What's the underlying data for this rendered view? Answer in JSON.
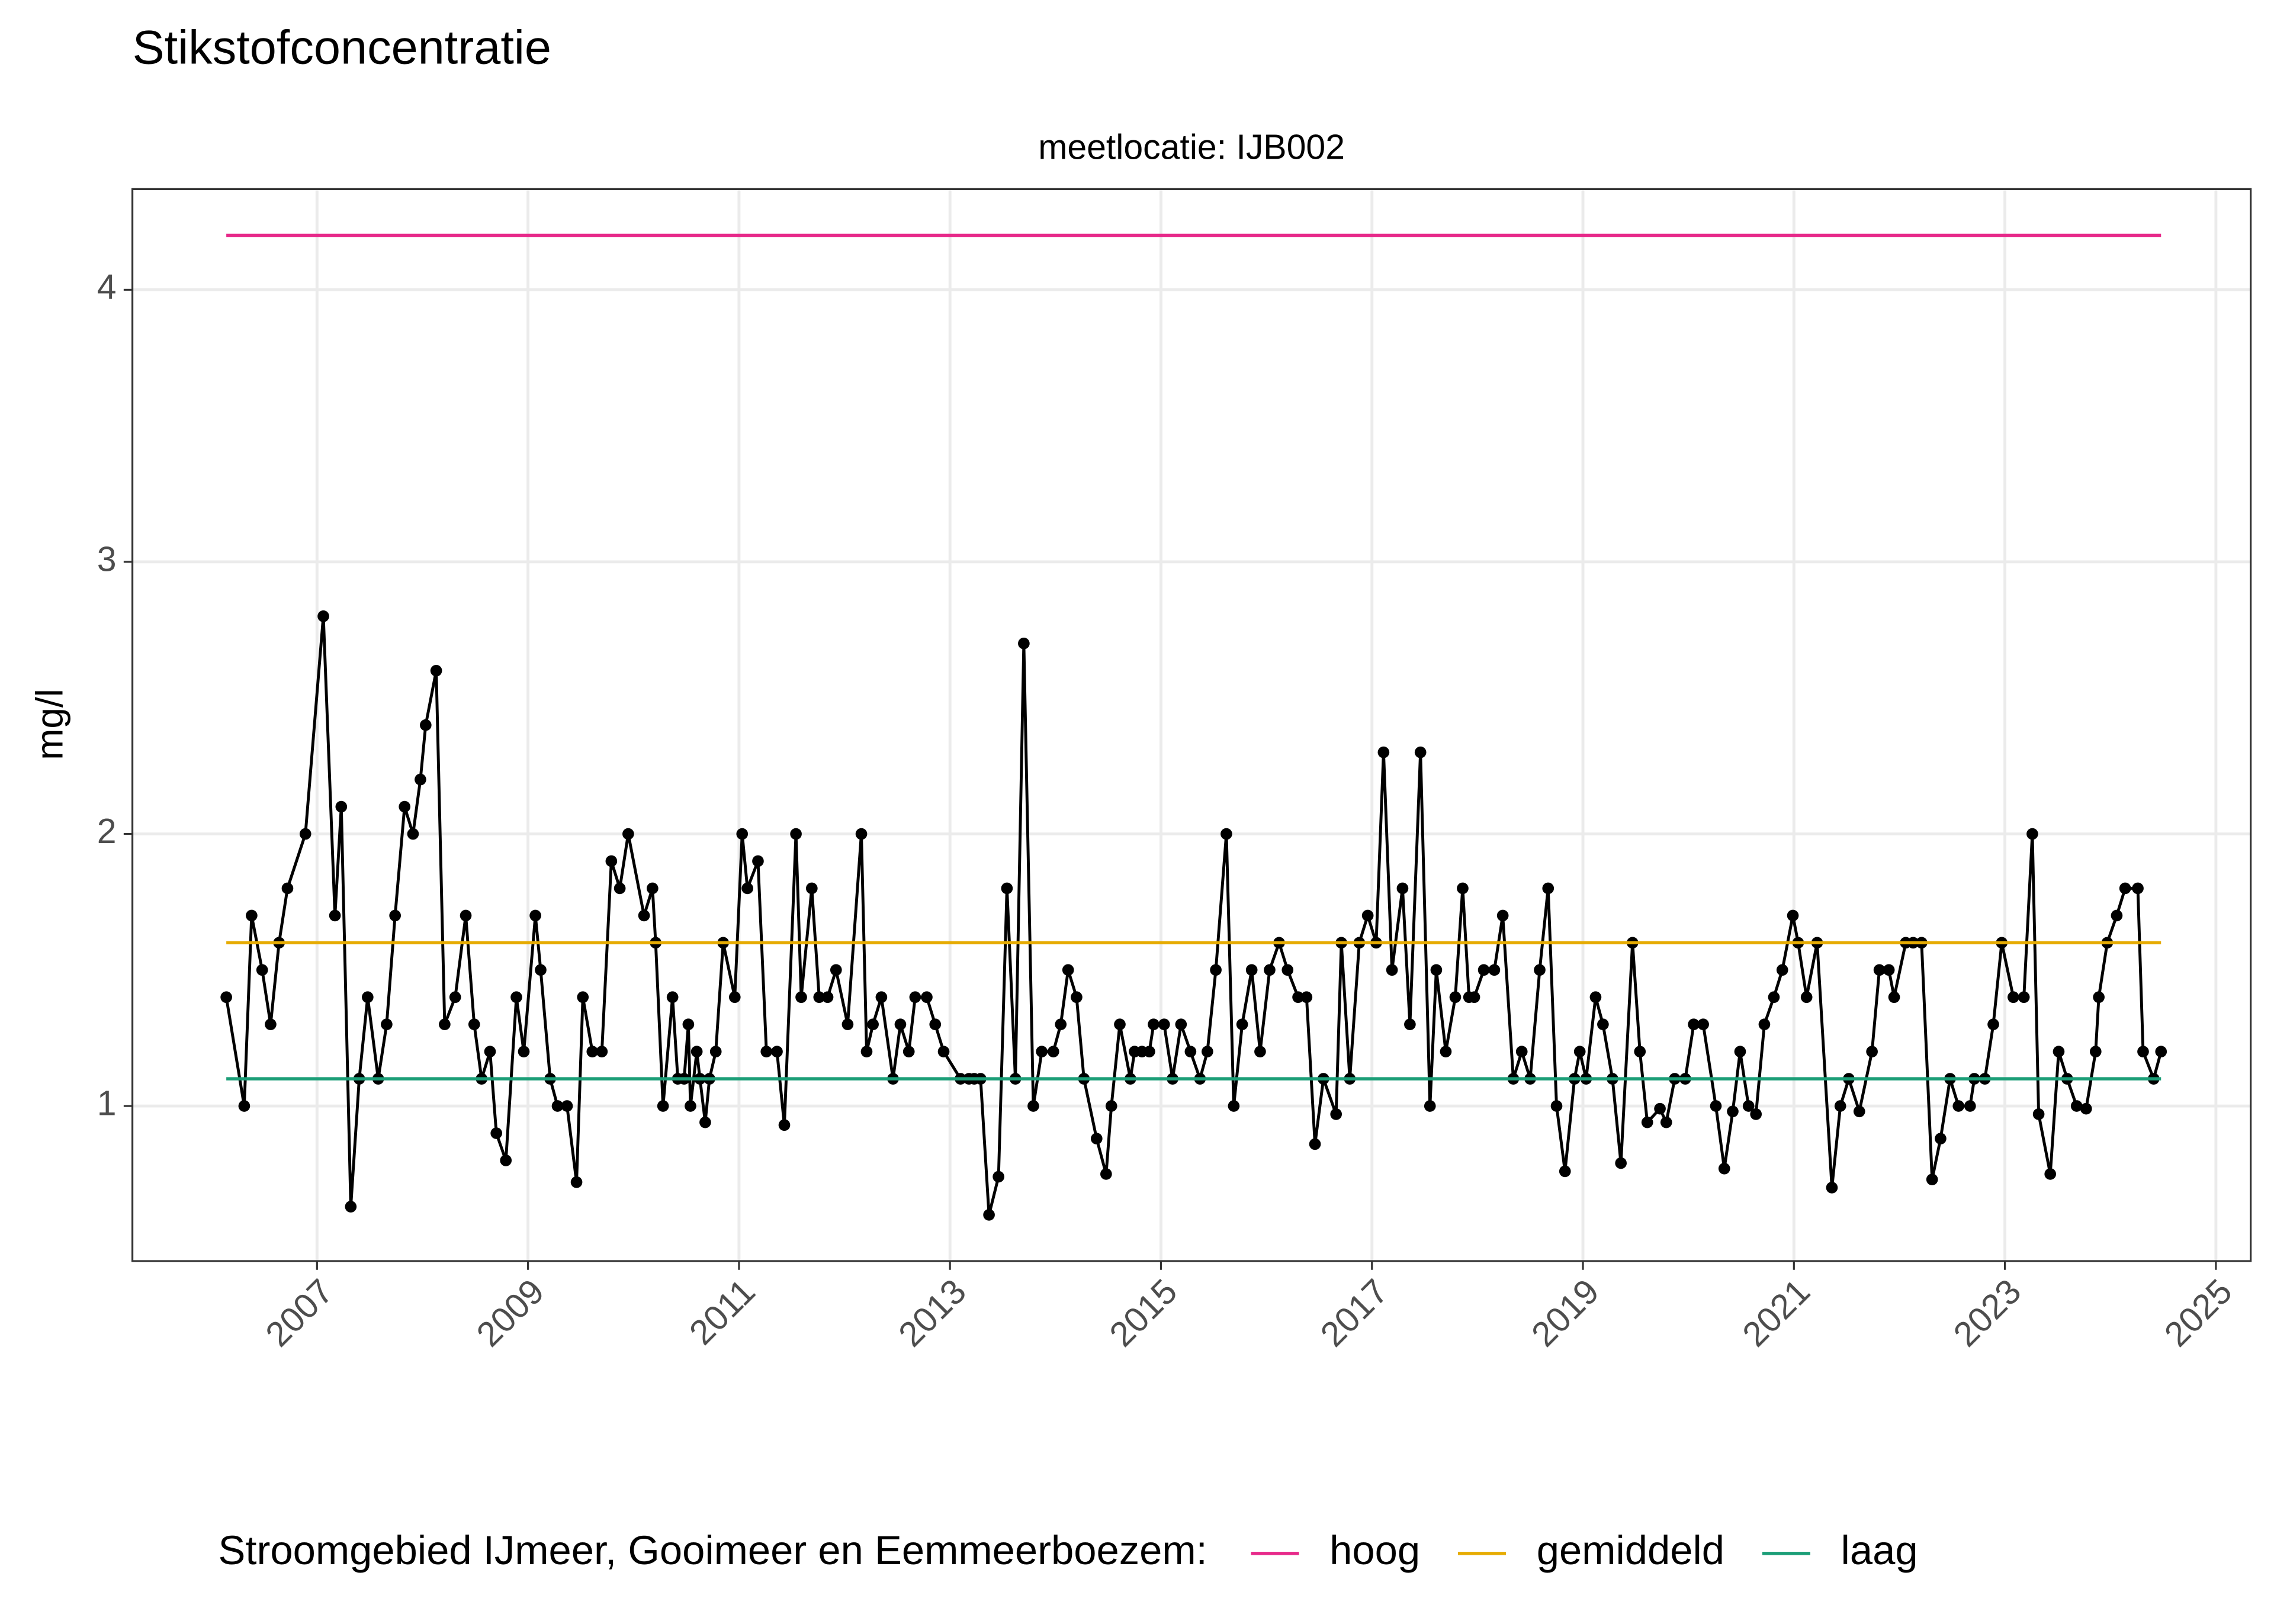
{
  "chart_data": {
    "type": "line",
    "title": "Stikstofconcentratie",
    "subtitle": "meetlocatie: IJB002",
    "y_label": "mg/l",
    "legend_title": "Stroomgebied IJmeer, Gooimeer en Eemmeerboezem:",
    "legend_position": "bottom",
    "grid": true,
    "xlim": [
      2005.25,
      2025.33
    ],
    "ylim": [
      0.43,
      4.37
    ],
    "xticks": [
      2007,
      2009,
      2011,
      2013,
      2015,
      2017,
      2019,
      2021,
      2023,
      2025
    ],
    "yticks": [
      1,
      2,
      3,
      4
    ],
    "series": [
      {
        "color": "#000000",
        "markers": true,
        "x": [
          2006.14,
          2006.31,
          2006.38,
          2006.48,
          2006.56,
          2006.64,
          2006.72,
          2006.89,
          2007.06,
          2007.17,
          2007.23,
          2007.32,
          2007.4,
          2007.48,
          2007.58,
          2007.66,
          2007.74,
          2007.83,
          2007.91,
          2007.98,
          2008.03,
          2008.13,
          2008.21,
          2008.31,
          2008.41,
          2008.49,
          2008.56,
          2008.64,
          2008.7,
          2008.79,
          2008.89,
          2008.96,
          2009.07,
          2009.12,
          2009.21,
          2009.28,
          2009.37,
          2009.46,
          2009.52,
          2009.61,
          2009.7,
          2009.79,
          2009.87,
          2009.95,
          2010.1,
          2010.18,
          2010.21,
          2010.28,
          2010.37,
          2010.42,
          2010.48,
          2010.52,
          2010.54,
          2010.6,
          2010.63,
          2010.68,
          2010.72,
          2010.78,
          2010.85,
          2010.96,
          2011.03,
          2011.08,
          2011.18,
          2011.26,
          2011.36,
          2011.43,
          2011.54,
          2011.59,
          2011.69,
          2011.76,
          2011.84,
          2011.92,
          2012.03,
          2012.16,
          2012.21,
          2012.27,
          2012.35,
          2012.46,
          2012.53,
          2012.61,
          2012.67,
          2012.78,
          2012.86,
          2012.94,
          2013.1,
          2013.18,
          2013.23,
          2013.29,
          2013.37,
          2013.46,
          2013.54,
          2013.62,
          2013.7,
          2013.79,
          2013.87,
          2013.98,
          2014.05,
          2014.12,
          2014.2,
          2014.27,
          2014.39,
          2014.48,
          2014.53,
          2014.61,
          2014.71,
          2014.75,
          2014.82,
          2014.89,
          2014.93,
          2015.03,
          2015.11,
          2015.19,
          2015.28,
          2015.37,
          2015.44,
          2015.52,
          2015.62,
          2015.69,
          2015.77,
          2015.86,
          2015.94,
          2016.03,
          2016.12,
          2016.2,
          2016.3,
          2016.38,
          2016.46,
          2016.54,
          2016.66,
          2016.71,
          2016.79,
          2016.88,
          2016.96,
          2017.04,
          2017.11,
          2017.19,
          2017.29,
          2017.36,
          2017.46,
          2017.55,
          2017.61,
          2017.7,
          2017.79,
          2017.86,
          2017.92,
          2017.97,
          2018.06,
          2018.16,
          2018.24,
          2018.34,
          2018.42,
          2018.5,
          2018.59,
          2018.67,
          2018.75,
          2018.83,
          2018.92,
          2018.97,
          2019.03,
          2019.12,
          2019.19,
          2019.28,
          2019.36,
          2019.47,
          2019.54,
          2019.61,
          2019.73,
          2019.79,
          2019.87,
          2019.97,
          2020.05,
          2020.14,
          2020.26,
          2020.34,
          2020.42,
          2020.49,
          2020.57,
          2020.64,
          2020.72,
          2020.81,
          2020.89,
          2020.99,
          2021.04,
          2021.12,
          2021.22,
          2021.36,
          2021.44,
          2021.52,
          2021.62,
          2021.74,
          2021.81,
          2021.9,
          2021.95,
          2022.06,
          2022.13,
          2022.21,
          2022.31,
          2022.39,
          2022.48,
          2022.56,
          2022.67,
          2022.71,
          2022.81,
          2022.89,
          2022.97,
          2023.08,
          2023.18,
          2023.26,
          2023.32,
          2023.43,
          2023.51,
          2023.59,
          2023.68,
          2023.77,
          2023.86,
          2023.89,
          2023.97,
          2024.06,
          2024.14,
          2024.26,
          2024.31,
          2024.41,
          2024.48
        ],
        "values": [
          1.4,
          1.0,
          1.7,
          1.5,
          1.3,
          1.6,
          1.8,
          2.0,
          2.8,
          1.7,
          2.1,
          0.63,
          1.1,
          1.4,
          1.1,
          1.3,
          1.7,
          2.1,
          2.0,
          2.2,
          2.4,
          2.6,
          1.3,
          1.4,
          1.7,
          1.3,
          1.1,
          1.2,
          0.9,
          0.8,
          1.4,
          1.2,
          1.7,
          1.5,
          1.1,
          1.0,
          1.0,
          0.72,
          1.4,
          1.2,
          1.2,
          1.9,
          1.8,
          2.0,
          1.7,
          1.8,
          1.6,
          1.0,
          1.4,
          1.1,
          1.1,
          1.3,
          1.0,
          1.2,
          1.1,
          0.94,
          1.1,
          1.2,
          1.6,
          1.4,
          2.0,
          1.8,
          1.9,
          1.2,
          1.2,
          0.93,
          2.0,
          1.4,
          1.8,
          1.4,
          1.4,
          1.5,
          1.3,
          2.0,
          1.2,
          1.3,
          1.4,
          1.1,
          1.3,
          1.2,
          1.4,
          1.4,
          1.3,
          1.2,
          1.1,
          1.1,
          1.1,
          1.1,
          0.6,
          0.74,
          1.8,
          1.1,
          2.7,
          1.0,
          1.2,
          1.2,
          1.3,
          1.5,
          1.4,
          1.1,
          0.88,
          0.75,
          1.0,
          1.3,
          1.1,
          1.2,
          1.2,
          1.2,
          1.3,
          1.3,
          1.1,
          1.3,
          1.2,
          1.1,
          1.2,
          1.5,
          2.0,
          1.0,
          1.3,
          1.5,
          1.2,
          1.5,
          1.6,
          1.5,
          1.4,
          1.4,
          0.86,
          1.1,
          0.97,
          1.6,
          1.1,
          1.6,
          1.7,
          1.6,
          2.3,
          1.5,
          1.8,
          1.3,
          2.3,
          1.0,
          1.5,
          1.2,
          1.4,
          1.8,
          1.4,
          1.4,
          1.5,
          1.5,
          1.7,
          1.1,
          1.2,
          1.1,
          1.5,
          1.8,
          1.0,
          0.76,
          1.1,
          1.2,
          1.1,
          1.4,
          1.3,
          1.1,
          0.79,
          1.6,
          1.2,
          0.94,
          0.99,
          0.94,
          1.1,
          1.1,
          1.3,
          1.3,
          1.0,
          0.77,
          0.98,
          1.2,
          1.0,
          0.97,
          1.3,
          1.4,
          1.5,
          1.7,
          1.6,
          1.4,
          1.6,
          0.7,
          1.0,
          1.1,
          0.98,
          1.2,
          1.5,
          1.5,
          1.4,
          1.6,
          1.6,
          1.6,
          0.73,
          0.88,
          1.1,
          1.0,
          1.0,
          1.1,
          1.1,
          1.3,
          1.6,
          1.4,
          1.4,
          2.0,
          0.97,
          0.75,
          1.2,
          1.1,
          1.0,
          0.99,
          1.2,
          1.4,
          1.6,
          1.7,
          1.8,
          1.8,
          1.2,
          1.1,
          1.2
        ]
      },
      {
        "name": "hoog",
        "color": "#e7298a",
        "x": [
          2006.14,
          2024.48
        ],
        "values": [
          4.2,
          4.2
        ]
      },
      {
        "name": "gemiddeld",
        "color": "#e6ab02",
        "x": [
          2006.14,
          2024.48
        ],
        "values": [
          1.6,
          1.6
        ]
      },
      {
        "name": "laag",
        "color": "#1b9e77",
        "x": [
          2006.14,
          2024.48
        ],
        "values": [
          1.1,
          1.1
        ]
      }
    ]
  }
}
